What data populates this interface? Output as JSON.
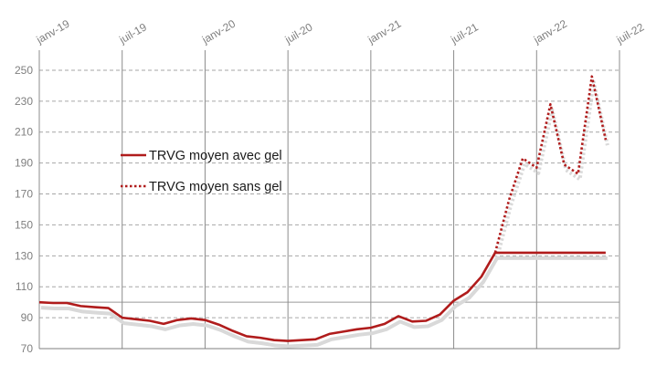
{
  "chart_data": {
    "type": "line",
    "title": "",
    "xlabel": "",
    "ylabel": "",
    "ylim": [
      70,
      260
    ],
    "xlim": [
      "2019-01",
      "2022-07"
    ],
    "y_ticks": [
      70,
      90,
      110,
      130,
      150,
      170,
      190,
      210,
      230,
      250
    ],
    "x_ticks": [
      {
        "label": "janv-19",
        "date": "2019-01"
      },
      {
        "label": "juil-19",
        "date": "2019-07"
      },
      {
        "label": "janv-20",
        "date": "2020-01"
      },
      {
        "label": "juil-20",
        "date": "2020-07"
      },
      {
        "label": "janv-21",
        "date": "2021-01"
      },
      {
        "label": "juil-21",
        "date": "2021-07"
      },
      {
        "label": "janv-22",
        "date": "2022-01"
      },
      {
        "label": "juil-22",
        "date": "2022-07"
      }
    ],
    "grid": {
      "horizontal": "dashed",
      "vertical": "solid"
    },
    "reference_line": 100,
    "legend_position": "left-center",
    "colors": {
      "series": "#b01c1c",
      "shadow": "#d9d9d9",
      "grid": "#a6a6a6",
      "axis": "#7f7f7f"
    },
    "series": [
      {
        "name": "TRVG moyen avec gel",
        "style": "solid",
        "points": [
          [
            "2019-01",
            100
          ],
          [
            "2019-02",
            99.5
          ],
          [
            "2019-03",
            99.5
          ],
          [
            "2019-04",
            97.5
          ],
          [
            "2019-05",
            96.8
          ],
          [
            "2019-06",
            96.2
          ],
          [
            "2019-07",
            90
          ],
          [
            "2019-08",
            89
          ],
          [
            "2019-09",
            88
          ],
          [
            "2019-10",
            86
          ],
          [
            "2019-11",
            88.5
          ],
          [
            "2019-12",
            89.5
          ],
          [
            "2020-01",
            88.5
          ],
          [
            "2020-02",
            85.5
          ],
          [
            "2020-03",
            81.5
          ],
          [
            "2020-04",
            78
          ],
          [
            "2020-05",
            77
          ],
          [
            "2020-06",
            75.5
          ],
          [
            "2020-07",
            75
          ],
          [
            "2020-08",
            75.5
          ],
          [
            "2020-09",
            76
          ],
          [
            "2020-10",
            79.5
          ],
          [
            "2020-11",
            81
          ],
          [
            "2020-12",
            82.5
          ],
          [
            "2021-01",
            83.5
          ],
          [
            "2021-02",
            86
          ],
          [
            "2021-03",
            91
          ],
          [
            "2021-04",
            87.5
          ],
          [
            "2021-05",
            88
          ],
          [
            "2021-06",
            92
          ],
          [
            "2021-07",
            101
          ],
          [
            "2021-08",
            106.5
          ],
          [
            "2021-09",
            116.5
          ],
          [
            "2021-10",
            132
          ],
          [
            "2021-11",
            132
          ],
          [
            "2021-12",
            132
          ],
          [
            "2022-01",
            132
          ],
          [
            "2022-02",
            132
          ],
          [
            "2022-03",
            132
          ],
          [
            "2022-04",
            132
          ],
          [
            "2022-05",
            132
          ],
          [
            "2022-06",
            132
          ]
        ]
      },
      {
        "name": "TRVG moyen sans gel",
        "style": "dotted",
        "points": [
          [
            "2021-10",
            132
          ],
          [
            "2021-11",
            166
          ],
          [
            "2021-12",
            193
          ],
          [
            "2022-01",
            187
          ],
          [
            "2022-02",
            228
          ],
          [
            "2022-03",
            189
          ],
          [
            "2022-04",
            183
          ],
          [
            "2022-05",
            246
          ],
          [
            "2022-06",
            205
          ]
        ]
      }
    ]
  }
}
